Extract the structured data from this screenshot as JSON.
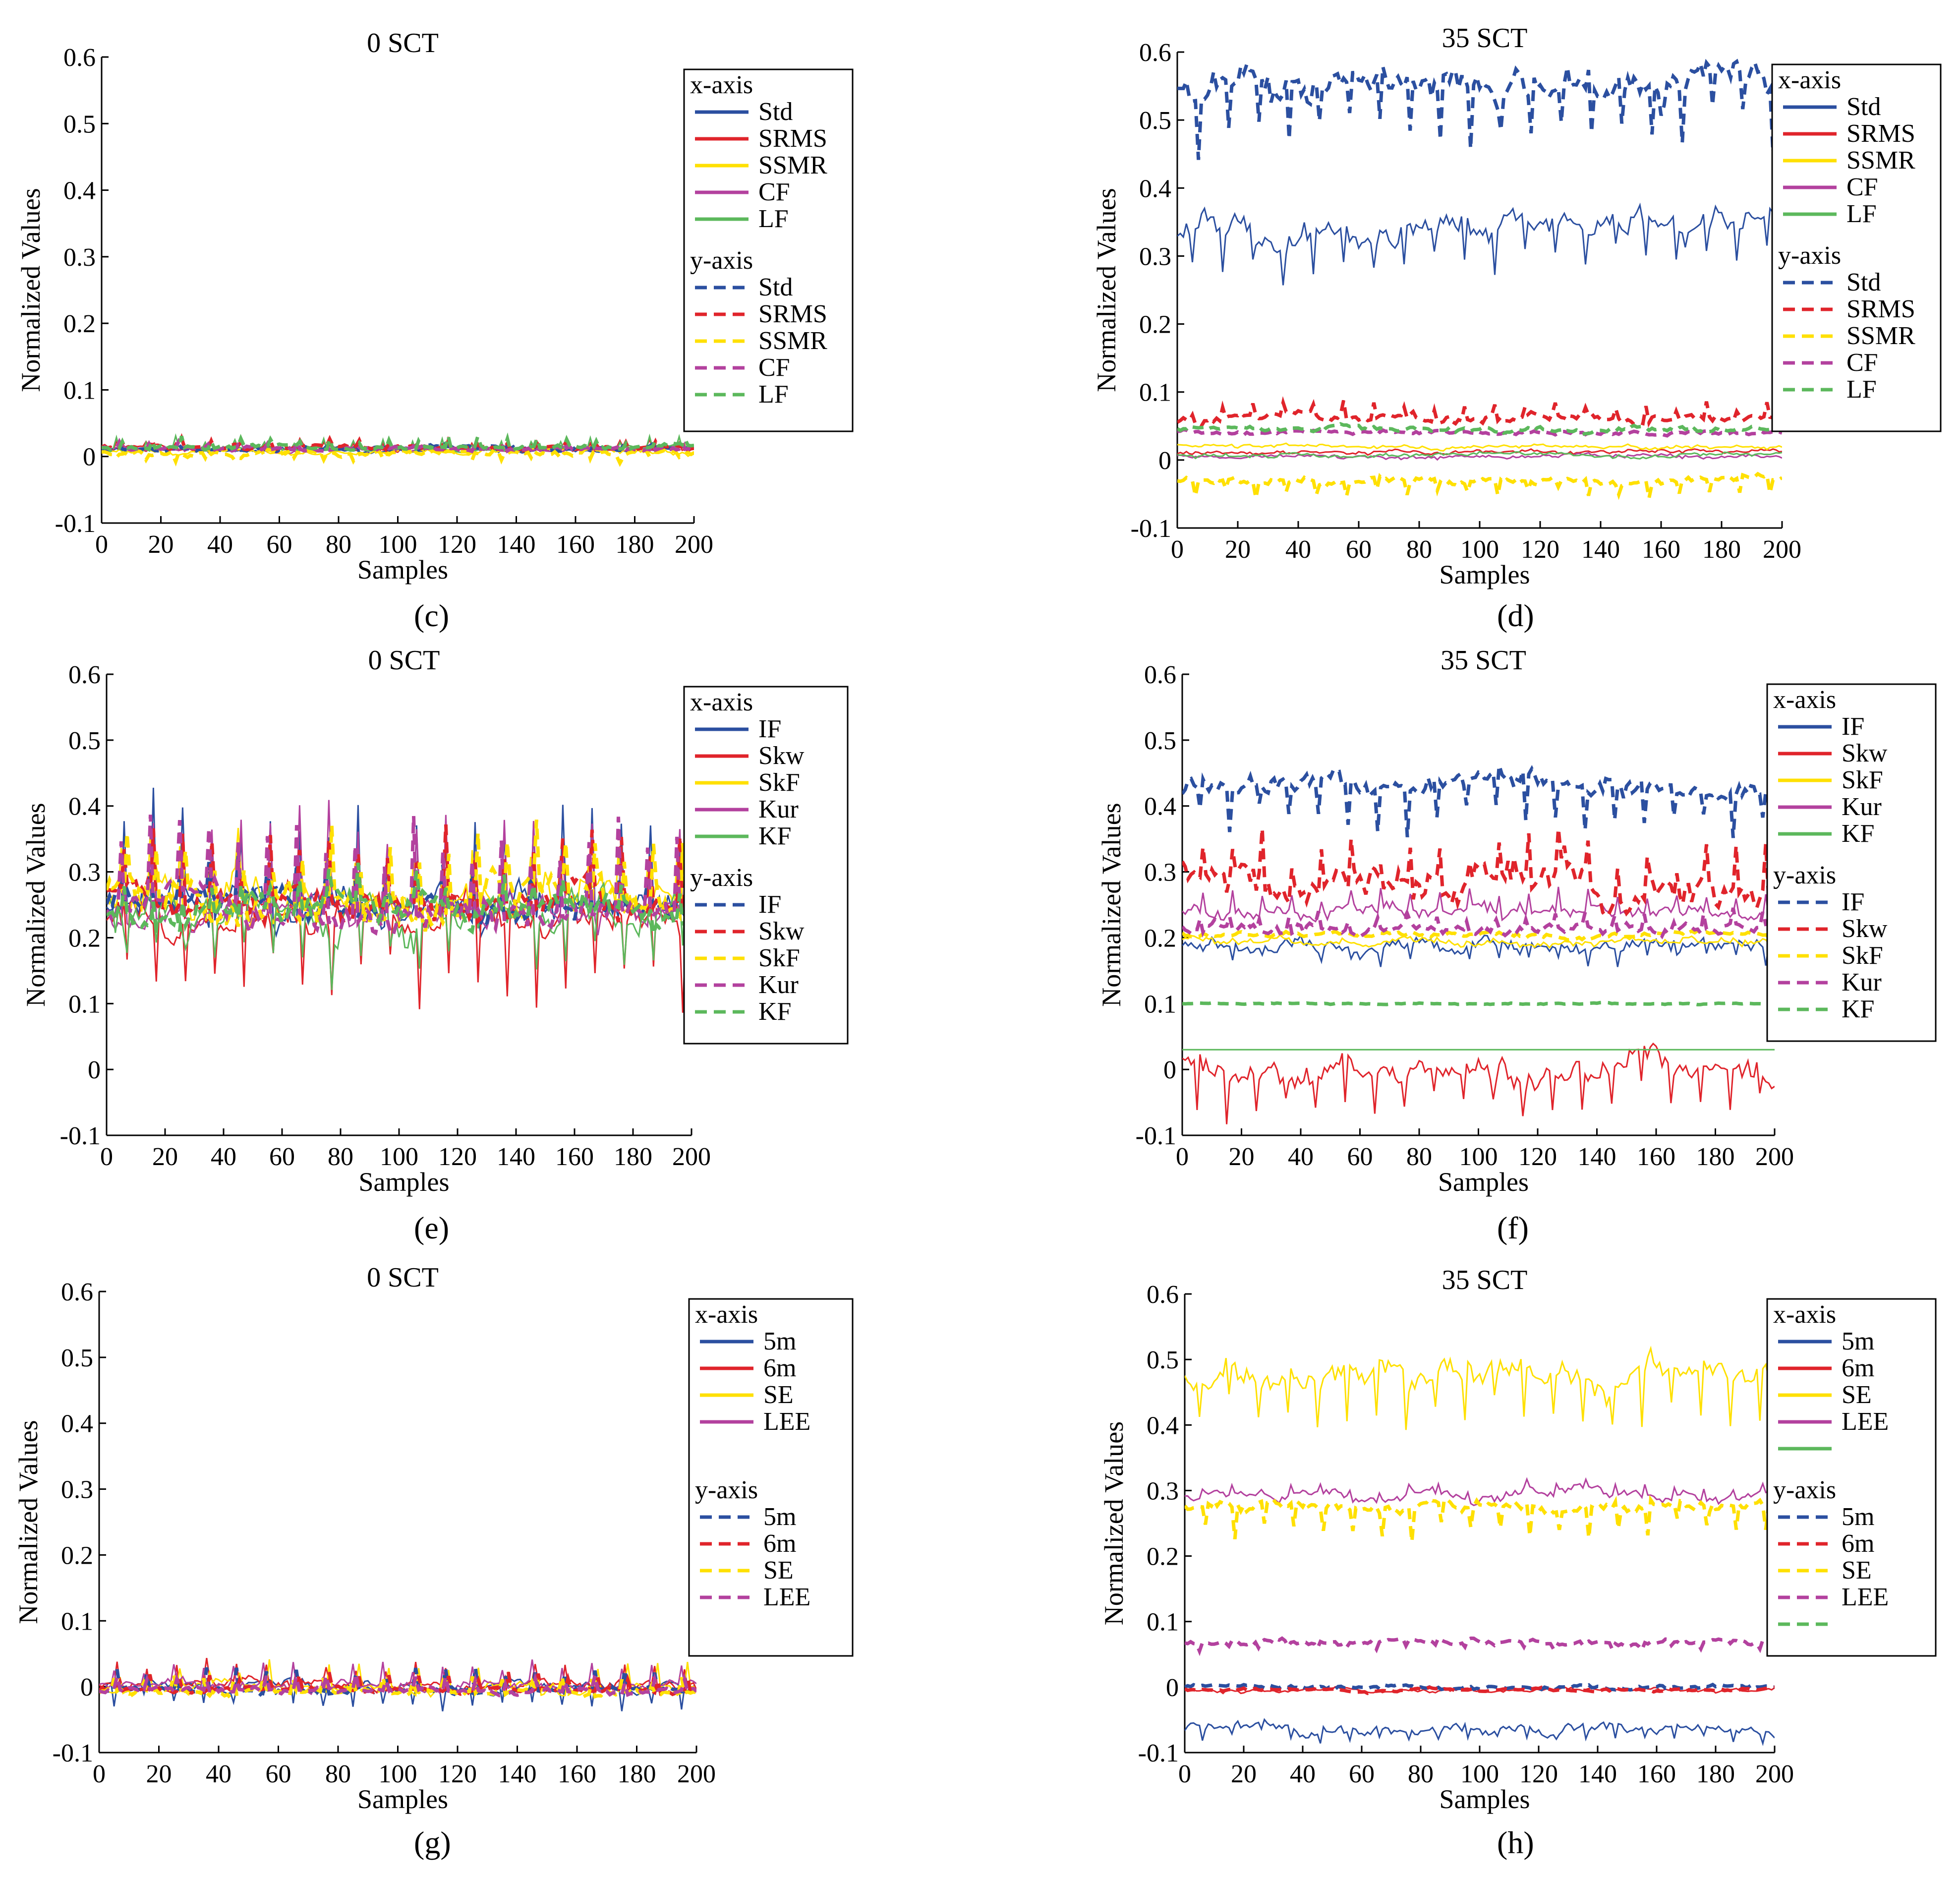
{
  "figure": {
    "panel_labels": [
      "(c)",
      "(d)",
      "(e)",
      "(f)",
      "(g)",
      "(h)"
    ]
  },
  "colors": {
    "blue": "#2b4fa0",
    "red": "#e0242b",
    "yellow": "#ffe000",
    "magenta": "#b3419e",
    "green": "#5cb85c"
  },
  "chart_data": [
    {
      "id": "c",
      "type": "line",
      "title": "0 SCT",
      "xlabel": "Samples",
      "ylabel": "Normalized Values",
      "xlim": [
        0,
        200
      ],
      "ylim": [
        -0.1,
        0.6
      ],
      "xticks": [
        0,
        20,
        40,
        60,
        80,
        100,
        120,
        140,
        160,
        180,
        200
      ],
      "yticks": [
        -0.1,
        0,
        0.1,
        0.2,
        0.3,
        0.4,
        0.5,
        0.6
      ],
      "ytick_labels": [
        "-0.1",
        "0",
        "0.1",
        "0.2",
        "0.3",
        "0.4",
        "0.5",
        "0.6"
      ],
      "legend_x_title": "x-axis",
      "legend_y_title": "y-axis",
      "series": [
        {
          "name": "Std",
          "axis": "x",
          "color": "#2b4fa0",
          "dash": false,
          "base": 0.01,
          "noise": 0.003,
          "spike": 0.0,
          "seed": 11,
          "label": true
        },
        {
          "name": "SRMS",
          "axis": "x",
          "color": "#e0242b",
          "dash": false,
          "base": 0.012,
          "noise": 0.003,
          "spike": 0.01,
          "seed": 12,
          "label": true
        },
        {
          "name": "SSMR",
          "axis": "x",
          "color": "#ffe000",
          "dash": false,
          "base": 0.008,
          "noise": 0.004,
          "spike": 0.0,
          "seed": 13,
          "label": true
        },
        {
          "name": "CF",
          "axis": "x",
          "color": "#b3419e",
          "dash": false,
          "base": 0.01,
          "noise": 0.003,
          "spike": 0.008,
          "seed": 14,
          "label": true
        },
        {
          "name": "LF",
          "axis": "x",
          "color": "#5cb85c",
          "dash": false,
          "base": 0.012,
          "noise": 0.003,
          "spike": 0.014,
          "seed": 15,
          "label": true
        },
        {
          "name": "Std",
          "axis": "y",
          "color": "#2b4fa0",
          "dash": true,
          "base": 0.012,
          "noise": 0.003,
          "spike": 0.005,
          "seed": 16,
          "label": true
        },
        {
          "name": "SRMS",
          "axis": "y",
          "color": "#e0242b",
          "dash": true,
          "base": 0.014,
          "noise": 0.003,
          "spike": 0.01,
          "seed": 17,
          "label": true
        },
        {
          "name": "SSMR",
          "axis": "y",
          "color": "#ffe000",
          "dash": true,
          "base": 0.004,
          "noise": 0.004,
          "spike": -0.01,
          "seed": 18,
          "label": true
        },
        {
          "name": "CF",
          "axis": "y",
          "color": "#b3419e",
          "dash": true,
          "base": 0.012,
          "noise": 0.003,
          "spike": 0.008,
          "seed": 19,
          "label": true
        },
        {
          "name": "LF",
          "axis": "y",
          "color": "#5cb85c",
          "dash": true,
          "base": 0.014,
          "noise": 0.003,
          "spike": 0.014,
          "seed": 20,
          "label": true
        }
      ]
    },
    {
      "id": "d",
      "type": "line",
      "title": "35 SCT",
      "xlabel": "Samples",
      "ylabel": "Normalized Values",
      "xlim": [
        0,
        200
      ],
      "ylim": [
        -0.1,
        0.6
      ],
      "xticks": [
        0,
        20,
        40,
        60,
        80,
        100,
        120,
        140,
        160,
        180,
        200
      ],
      "yticks": [
        -0.1,
        0,
        0.1,
        0.2,
        0.3,
        0.4,
        0.5,
        0.6
      ],
      "ytick_labels": [
        "-0.1",
        "0",
        "0.1",
        "0.2",
        "0.3",
        "0.4",
        "0.5",
        "0.6"
      ],
      "legend_x_title": "x-axis",
      "legend_y_title": "y-axis",
      "series": [
        {
          "name": "Std",
          "axis": "x",
          "color": "#2b4fa0",
          "dash": false,
          "base": 0.34,
          "noise": 0.02,
          "spike": -0.06,
          "seed": 21,
          "label": true
        },
        {
          "name": "SRMS",
          "axis": "x",
          "color": "#e0242b",
          "dash": false,
          "base": 0.012,
          "noise": 0.003,
          "spike": 0.0,
          "seed": 22,
          "label": true
        },
        {
          "name": "SSMR",
          "axis": "x",
          "color": "#ffe000",
          "dash": false,
          "base": 0.02,
          "noise": 0.003,
          "spike": 0.0,
          "seed": 23,
          "label": true
        },
        {
          "name": "CF",
          "axis": "x",
          "color": "#b3419e",
          "dash": false,
          "base": 0.005,
          "noise": 0.003,
          "spike": 0.0,
          "seed": 24,
          "label": true
        },
        {
          "name": "LF",
          "axis": "x",
          "color": "#5cb85c",
          "dash": false,
          "base": 0.008,
          "noise": 0.003,
          "spike": 0.0,
          "seed": 25,
          "label": true
        },
        {
          "name": "Std",
          "axis": "y",
          "color": "#2b4fa0",
          "dash": true,
          "base": 0.555,
          "noise": 0.025,
          "spike": -0.07,
          "seed": 26,
          "label": true
        },
        {
          "name": "SRMS",
          "axis": "y",
          "color": "#e0242b",
          "dash": true,
          "base": 0.06,
          "noise": 0.006,
          "spike": 0.02,
          "seed": 27,
          "label": true
        },
        {
          "name": "SSMR",
          "axis": "y",
          "color": "#ffe000",
          "dash": true,
          "base": -0.03,
          "noise": 0.005,
          "spike": -0.02,
          "seed": 28,
          "label": true
        },
        {
          "name": "CF",
          "axis": "y",
          "color": "#b3419e",
          "dash": true,
          "base": 0.04,
          "noise": 0.003,
          "spike": 0.0,
          "seed": 29,
          "label": true
        },
        {
          "name": "LF",
          "axis": "y",
          "color": "#5cb85c",
          "dash": true,
          "base": 0.045,
          "noise": 0.004,
          "spike": 0.0,
          "seed": 30,
          "label": true
        }
      ]
    },
    {
      "id": "e",
      "type": "line",
      "title": "0 SCT",
      "xlabel": "Samples",
      "ylabel": "Normalized Values",
      "xlim": [
        0,
        200
      ],
      "ylim": [
        -0.1,
        0.6
      ],
      "xticks": [
        0,
        20,
        40,
        60,
        80,
        100,
        120,
        140,
        160,
        180,
        200
      ],
      "yticks": [
        -0.1,
        0,
        0.1,
        0.2,
        0.3,
        0.4,
        0.5,
        0.6
      ],
      "ytick_labels": [
        "-0.1",
        "0",
        "0.1",
        "0.2",
        "0.3",
        "0.4",
        "0.5",
        "0.6"
      ],
      "legend_x_title": "x-axis",
      "legend_y_title": "y-axis",
      "series": [
        {
          "name": "IF",
          "axis": "x",
          "color": "#2b4fa0",
          "dash": false,
          "base": 0.25,
          "noise": 0.025,
          "spike": 0.14,
          "seed": 31,
          "label": true
        },
        {
          "name": "Skw",
          "axis": "x",
          "color": "#e0242b",
          "dash": false,
          "base": 0.24,
          "noise": 0.025,
          "spike": -0.1,
          "seed": 32,
          "label": true
        },
        {
          "name": "SkF",
          "axis": "x",
          "color": "#ffe000",
          "dash": false,
          "base": 0.26,
          "noise": 0.03,
          "spike": 0.07,
          "seed": 33,
          "label": true
        },
        {
          "name": "Kur",
          "axis": "x",
          "color": "#b3419e",
          "dash": false,
          "base": 0.245,
          "noise": 0.02,
          "spike": 0.13,
          "seed": 34,
          "label": true
        },
        {
          "name": "KF",
          "axis": "x",
          "color": "#5cb85c",
          "dash": false,
          "base": 0.24,
          "noise": 0.03,
          "spike": -0.06,
          "seed": 35,
          "label": true
        },
        {
          "name": "IF",
          "axis": "y",
          "color": "#2b4fa0",
          "dash": true,
          "base": 0.25,
          "noise": 0.02,
          "spike": 0.05,
          "seed": 36,
          "label": true
        },
        {
          "name": "Skw",
          "axis": "y",
          "color": "#e0242b",
          "dash": true,
          "base": 0.255,
          "noise": 0.025,
          "spike": 0.09,
          "seed": 37,
          "label": true
        },
        {
          "name": "SkF",
          "axis": "y",
          "color": "#ffe000",
          "dash": true,
          "base": 0.265,
          "noise": 0.03,
          "spike": 0.08,
          "seed": 38,
          "label": true
        },
        {
          "name": "Kur",
          "axis": "y",
          "color": "#b3419e",
          "dash": true,
          "base": 0.245,
          "noise": 0.02,
          "spike": 0.12,
          "seed": 39,
          "label": true
        },
        {
          "name": "KF",
          "axis": "y",
          "color": "#5cb85c",
          "dash": true,
          "base": 0.245,
          "noise": 0.02,
          "spike": 0.04,
          "seed": 40,
          "label": true
        }
      ]
    },
    {
      "id": "f",
      "type": "line",
      "title": "35 SCT",
      "xlabel": "Samples",
      "ylabel": "Normalized Values",
      "xlim": [
        0,
        200
      ],
      "ylim": [
        -0.1,
        0.6
      ],
      "xticks": [
        0,
        20,
        40,
        60,
        80,
        100,
        120,
        140,
        160,
        180,
        200
      ],
      "yticks": [
        -0.1,
        0,
        0.1,
        0.2,
        0.3,
        0.4,
        0.5,
        0.6
      ],
      "ytick_labels": [
        "-0.1",
        "0",
        "0.1",
        "0.2",
        "0.3",
        "0.4",
        "0.5",
        "0.6"
      ],
      "legend_x_title": "x-axis",
      "legend_y_title": "y-axis",
      "series": [
        {
          "name": "IF",
          "axis": "x",
          "color": "#2b4fa0",
          "dash": false,
          "base": 0.185,
          "noise": 0.012,
          "spike": -0.02,
          "seed": 41,
          "label": true
        },
        {
          "name": "Skw",
          "axis": "x",
          "color": "#e0242b",
          "dash": false,
          "base": 0.0,
          "noise": 0.02,
          "spike": -0.06,
          "seed": 42,
          "label": true
        },
        {
          "name": "SkF",
          "axis": "x",
          "color": "#ffe000",
          "dash": false,
          "base": 0.195,
          "noise": 0.006,
          "spike": 0.0,
          "seed": 43,
          "label": true
        },
        {
          "name": "Kur",
          "axis": "x",
          "color": "#b3419e",
          "dash": false,
          "base": 0.24,
          "noise": 0.01,
          "spike": 0.03,
          "seed": 44,
          "label": true
        },
        {
          "name": "KF",
          "axis": "x",
          "color": "#5cb85c",
          "dash": false,
          "base": 0.03,
          "noise": 0.0,
          "spike": 0.0,
          "seed": 45,
          "label": true
        },
        {
          "name": "IF",
          "axis": "y",
          "color": "#2b4fa0",
          "dash": true,
          "base": 0.43,
          "noise": 0.015,
          "spike": -0.06,
          "seed": 46,
          "label": true
        },
        {
          "name": "Skw",
          "axis": "y",
          "color": "#e0242b",
          "dash": true,
          "base": 0.29,
          "noise": 0.025,
          "spike": 0.06,
          "seed": 47,
          "label": true
        },
        {
          "name": "SkF",
          "axis": "y",
          "color": "#ffe000",
          "dash": true,
          "base": 0.205,
          "noise": 0.004,
          "spike": 0.0,
          "seed": 48,
          "label": true
        },
        {
          "name": "Kur",
          "axis": "y",
          "color": "#b3419e",
          "dash": true,
          "base": 0.215,
          "noise": 0.008,
          "spike": 0.02,
          "seed": 49,
          "label": true
        },
        {
          "name": "KF",
          "axis": "y",
          "color": "#5cb85c",
          "dash": true,
          "base": 0.1,
          "noise": 0.001,
          "spike": 0.0,
          "seed": 50,
          "label": true
        }
      ]
    },
    {
      "id": "g",
      "type": "line",
      "title": "0 SCT",
      "xlabel": "Samples",
      "ylabel": "Normalized Values",
      "xlim": [
        0,
        200
      ],
      "ylim": [
        -0.1,
        0.6
      ],
      "xticks": [
        0,
        20,
        40,
        60,
        80,
        100,
        120,
        140,
        160,
        180,
        200
      ],
      "yticks": [
        -0.1,
        0,
        0.1,
        0.2,
        0.3,
        0.4,
        0.5,
        0.6
      ],
      "ytick_labels": [
        "-0.1",
        "0",
        "0.1",
        "0.2",
        "0.3",
        "0.4",
        "0.5",
        "0.6"
      ],
      "legend_x_title": "x-axis",
      "legend_y_title": "y-axis",
      "series": [
        {
          "name": "5m",
          "axis": "x",
          "color": "#2b4fa0",
          "dash": false,
          "base": 0.0,
          "noise": 0.008,
          "spike": -0.03,
          "seed": 51,
          "label": true
        },
        {
          "name": "6m",
          "axis": "x",
          "color": "#e0242b",
          "dash": false,
          "base": 0.002,
          "noise": 0.008,
          "spike": 0.03,
          "seed": 52,
          "label": true
        },
        {
          "name": "SE",
          "axis": "x",
          "color": "#ffe000",
          "dash": false,
          "base": -0.002,
          "noise": 0.008,
          "spike": 0.03,
          "seed": 53,
          "label": true
        },
        {
          "name": "LEE",
          "axis": "x",
          "color": "#b3419e",
          "dash": false,
          "base": 0.0,
          "noise": 0.008,
          "spike": 0.03,
          "seed": 54,
          "label": true
        },
        {
          "name": "5m",
          "axis": "y",
          "color": "#2b4fa0",
          "dash": true,
          "base": -0.005,
          "noise": 0.004,
          "spike": 0.03,
          "seed": 55,
          "label": true
        },
        {
          "name": "6m",
          "axis": "y",
          "color": "#e0242b",
          "dash": true,
          "base": -0.004,
          "noise": 0.004,
          "spike": 0.02,
          "seed": 56,
          "label": true
        },
        {
          "name": "SE",
          "axis": "y",
          "color": "#ffe000",
          "dash": true,
          "base": -0.01,
          "noise": 0.005,
          "spike": 0.02,
          "seed": 57,
          "label": true
        },
        {
          "name": "LEE",
          "axis": "y",
          "color": "#b3419e",
          "dash": true,
          "base": -0.006,
          "noise": 0.004,
          "spike": 0.02,
          "seed": 58,
          "label": true
        }
      ]
    },
    {
      "id": "h",
      "type": "line",
      "title": "35 SCT",
      "xlabel": "Samples",
      "ylabel": "Normalized Values",
      "xlim": [
        0,
        200
      ],
      "ylim": [
        -0.1,
        0.6
      ],
      "xticks": [
        0,
        20,
        40,
        60,
        80,
        100,
        120,
        140,
        160,
        180,
        200
      ],
      "yticks": [
        -0.1,
        0,
        0.1,
        0.2,
        0.3,
        0.4,
        0.5,
        0.6
      ],
      "ytick_labels": [
        "-0.1",
        "0",
        "0.1",
        "0.2",
        "0.3",
        "0.4",
        "0.5",
        "0.6"
      ],
      "legend_x_title": "x-axis",
      "legend_y_title": "y-axis",
      "series": [
        {
          "name": "5m",
          "axis": "x",
          "color": "#2b4fa0",
          "dash": false,
          "base": -0.065,
          "noise": 0.008,
          "spike": -0.015,
          "seed": 61,
          "label": true
        },
        {
          "name": "6m",
          "axis": "x",
          "color": "#e0242b",
          "dash": false,
          "base": -0.005,
          "noise": 0.003,
          "spike": 0.0,
          "seed": 62,
          "label": true
        },
        {
          "name": "SE",
          "axis": "x",
          "color": "#ffe000",
          "dash": false,
          "base": 0.475,
          "noise": 0.02,
          "spike": -0.07,
          "seed": 63,
          "label": true
        },
        {
          "name": "LEE",
          "axis": "x",
          "color": "#b3419e",
          "dash": false,
          "base": 0.295,
          "noise": 0.008,
          "spike": 0.015,
          "seed": 64,
          "label": true
        },
        {
          "name": "",
          "axis": "x",
          "color": "#5cb85c",
          "dash": false,
          "base": 0,
          "noise": 0,
          "spike": 0,
          "seed": 65,
          "label": false,
          "plot": false
        },
        {
          "name": "5m",
          "axis": "y",
          "color": "#2b4fa0",
          "dash": true,
          "base": 0.0,
          "noise": 0.003,
          "spike": 0.0,
          "seed": 66,
          "label": true
        },
        {
          "name": "6m",
          "axis": "y",
          "color": "#e0242b",
          "dash": true,
          "base": -0.004,
          "noise": 0.002,
          "spike": 0.0,
          "seed": 67,
          "label": true
        },
        {
          "name": "SE",
          "axis": "y",
          "color": "#ffe000",
          "dash": true,
          "base": 0.275,
          "noise": 0.008,
          "spike": -0.04,
          "seed": 68,
          "label": true
        },
        {
          "name": "LEE",
          "axis": "y",
          "color": "#b3419e",
          "dash": true,
          "base": 0.068,
          "noise": 0.004,
          "spike": -0.01,
          "seed": 69,
          "label": true
        },
        {
          "name": "",
          "axis": "y",
          "color": "#5cb85c",
          "dash": true,
          "base": 0,
          "noise": 0,
          "spike": 0,
          "seed": 70,
          "label": false,
          "plot": false
        }
      ]
    }
  ]
}
